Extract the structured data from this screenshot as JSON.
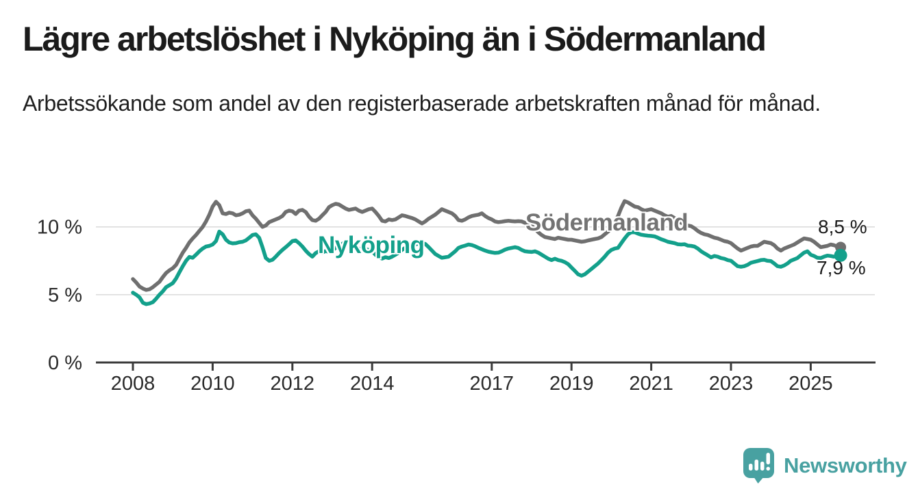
{
  "header": {
    "title": "Lägre arbetslöshet i Nyköping än i Södermanland",
    "subtitle": "Arbetssökande som andel av den registerbaserade arbetskraften månad för månad."
  },
  "chart_data": {
    "type": "line",
    "title": "Lägre arbetslöshet i Nyköping än i Södermanland",
    "subtitle": "Arbetssökande som andel av den registerbaserade arbetskraften månad för månad.",
    "frequency": "monthly",
    "start": "2008-01",
    "end": "2025-10",
    "start_year": 2008,
    "grid": "horizontal",
    "legend": "inline-labels",
    "x_axis": {
      "tick_years": [
        2008,
        2010,
        2012,
        2014,
        2017,
        2019,
        2021,
        2023,
        2025
      ],
      "tick_labels": [
        "2008",
        "2010",
        "2012",
        "2014",
        "2017",
        "2019",
        "2021",
        "2023",
        "2025"
      ]
    },
    "y_axis": {
      "unit": "%",
      "ylim": [
        0,
        12.5
      ],
      "ticks": [
        {
          "value": 0,
          "label": "0 %"
        },
        {
          "value": 5,
          "label": "5 %"
        },
        {
          "value": 10,
          "label": "10 %"
        }
      ]
    },
    "series": [
      {
        "name": "Södermanland",
        "color": "#6f6f6f",
        "end_label": "8,5 %",
        "end_value": 8.5,
        "values": [
          6.15,
          5.9,
          5.6,
          5.45,
          5.35,
          5.4,
          5.55,
          5.75,
          5.95,
          6.3,
          6.6,
          6.8,
          6.95,
          7.2,
          7.65,
          8.1,
          8.45,
          8.85,
          9.15,
          9.4,
          9.7,
          10.0,
          10.4,
          10.9,
          11.5,
          11.85,
          11.6,
          11.0,
          10.95,
          11.05,
          11.0,
          10.85,
          10.9,
          11.0,
          11.15,
          11.2,
          10.85,
          10.6,
          10.3,
          10.0,
          10.1,
          10.35,
          10.45,
          10.55,
          10.65,
          10.8,
          11.1,
          11.2,
          11.15,
          10.95,
          11.2,
          11.25,
          11.1,
          10.75,
          10.5,
          10.45,
          10.6,
          10.85,
          11.1,
          11.45,
          11.6,
          11.7,
          11.65,
          11.5,
          11.35,
          11.25,
          11.3,
          11.35,
          11.2,
          11.1,
          11.2,
          11.3,
          11.35,
          11.1,
          10.8,
          10.45,
          10.4,
          10.55,
          10.5,
          10.55,
          10.7,
          10.85,
          10.8,
          10.72,
          10.65,
          10.55,
          10.4,
          10.25,
          10.4,
          10.6,
          10.75,
          10.9,
          11.1,
          11.3,
          11.2,
          11.1,
          11.0,
          10.8,
          10.5,
          10.45,
          10.55,
          10.7,
          10.8,
          10.85,
          10.9,
          11.0,
          10.8,
          10.65,
          10.55,
          10.4,
          10.35,
          10.38,
          10.42,
          10.45,
          10.42,
          10.4,
          10.42,
          10.4,
          10.3,
          10.2,
          10.1,
          9.85,
          9.6,
          9.4,
          9.25,
          9.2,
          9.15,
          9.1,
          9.2,
          9.15,
          9.1,
          9.05,
          9.05,
          9.0,
          8.95,
          8.9,
          8.93,
          9.0,
          9.05,
          9.1,
          9.15,
          9.25,
          9.45,
          9.65,
          9.9,
          10.35,
          10.8,
          11.4,
          11.9,
          11.8,
          11.65,
          11.5,
          11.45,
          11.3,
          11.2,
          11.25,
          11.3,
          11.2,
          11.1,
          11.0,
          10.85,
          10.75,
          10.8,
          10.65,
          10.5,
          10.3,
          10.2,
          10.1,
          10.05,
          9.9,
          9.7,
          9.55,
          9.45,
          9.4,
          9.3,
          9.2,
          9.15,
          9.05,
          8.95,
          8.9,
          8.8,
          8.6,
          8.4,
          8.25,
          8.35,
          8.45,
          8.55,
          8.6,
          8.6,
          8.75,
          8.9,
          8.85,
          8.8,
          8.65,
          8.4,
          8.25,
          8.4,
          8.5,
          8.6,
          8.7,
          8.85,
          9.0,
          9.15,
          9.1,
          9.05,
          8.9,
          8.7,
          8.5,
          8.55,
          8.6,
          8.7,
          8.65,
          8.55,
          8.5
        ]
      },
      {
        "name": "Nyköping",
        "color": "#13a08b",
        "end_label": "7,9 %",
        "end_value": 7.9,
        "values": [
          5.15,
          5.0,
          4.8,
          4.4,
          4.3,
          4.35,
          4.45,
          4.7,
          5.0,
          5.25,
          5.55,
          5.7,
          5.85,
          6.2,
          6.65,
          7.1,
          7.5,
          7.78,
          7.72,
          7.95,
          8.2,
          8.4,
          8.55,
          8.6,
          8.7,
          8.95,
          9.65,
          9.45,
          9.05,
          8.85,
          8.78,
          8.8,
          8.87,
          8.9,
          9.0,
          9.2,
          9.4,
          9.45,
          9.2,
          8.5,
          7.7,
          7.5,
          7.57,
          7.8,
          8.07,
          8.3,
          8.5,
          8.72,
          8.95,
          9.0,
          8.8,
          8.55,
          8.25,
          8.0,
          7.8,
          8.07,
          8.2,
          8.1,
          8.22,
          8.15,
          8.25,
          8.45,
          8.6,
          8.75,
          8.9,
          8.85,
          8.7,
          8.55,
          8.4,
          8.3,
          8.35,
          8.3,
          8.2,
          7.95,
          7.75,
          7.66,
          7.76,
          7.7,
          7.8,
          7.95,
          8.1,
          8.3,
          8.45,
          8.55,
          8.6,
          8.7,
          8.78,
          8.82,
          8.74,
          8.5,
          8.25,
          8.0,
          7.85,
          7.72,
          7.76,
          7.8,
          8.0,
          8.2,
          8.45,
          8.55,
          8.62,
          8.7,
          8.66,
          8.57,
          8.45,
          8.35,
          8.25,
          8.17,
          8.12,
          8.08,
          8.1,
          8.2,
          8.32,
          8.4,
          8.45,
          8.5,
          8.44,
          8.3,
          8.2,
          8.17,
          8.15,
          8.2,
          8.1,
          7.95,
          7.8,
          7.65,
          7.55,
          7.65,
          7.55,
          7.5,
          7.4,
          7.25,
          7.0,
          6.75,
          6.5,
          6.4,
          6.5,
          6.7,
          6.9,
          7.1,
          7.3,
          7.55,
          7.8,
          8.1,
          8.3,
          8.4,
          8.45,
          8.8,
          9.15,
          9.45,
          9.6,
          9.6,
          9.5,
          9.42,
          9.38,
          9.35,
          9.33,
          9.3,
          9.2,
          9.08,
          9.0,
          8.9,
          8.85,
          8.8,
          8.72,
          8.7,
          8.72,
          8.62,
          8.6,
          8.55,
          8.4,
          8.2,
          8.05,
          7.9,
          7.75,
          7.85,
          7.8,
          7.7,
          7.65,
          7.55,
          7.5,
          7.3,
          7.1,
          7.06,
          7.1,
          7.2,
          7.35,
          7.42,
          7.48,
          7.55,
          7.57,
          7.5,
          7.48,
          7.3,
          7.1,
          7.06,
          7.15,
          7.3,
          7.5,
          7.6,
          7.7,
          7.9,
          8.1,
          8.2,
          7.95,
          7.85,
          7.72,
          7.7,
          7.8,
          7.88,
          7.85,
          7.8,
          7.85,
          7.9
        ]
      }
    ]
  },
  "branding": {
    "name": "Newsworthy",
    "logo_icon": "newsworthy-speech-bubble-chart-icon",
    "color": "#48a1a1"
  }
}
